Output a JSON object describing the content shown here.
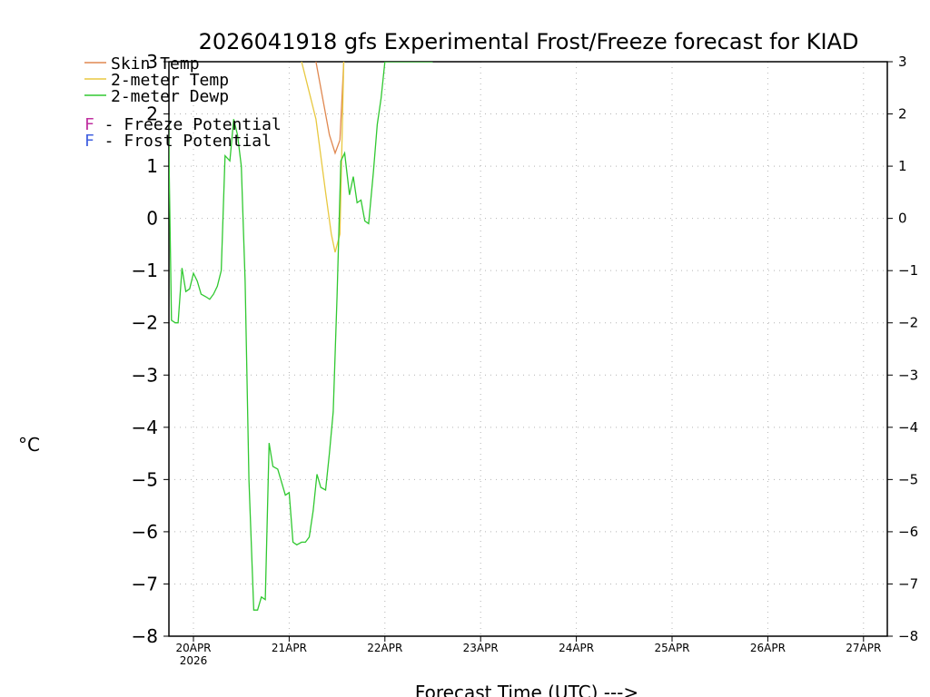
{
  "chart_data": {
    "type": "line",
    "title": "2026041918 gfs Experimental Frost/Freeze forecast for KIAD",
    "ylabel": "°C",
    "xlabel": "Forecast Time (UTC) --->",
    "ylim": [
      -8,
      3
    ],
    "xlim_days": [
      -0.2,
      7.25
    ],
    "y_ticks": [
      -8,
      -7,
      -6,
      -5,
      -4,
      -3,
      -2,
      -1,
      0,
      1,
      2,
      3
    ],
    "y_tick_labels": [
      "−8",
      "−7",
      "−6",
      "−5",
      "−4",
      "−3",
      "−2",
      "−1",
      "0",
      "1",
      "2",
      "3"
    ],
    "x_ticks": [
      {
        "day": 0,
        "label": "20APR",
        "sublabel": "2026"
      },
      {
        "day": 1,
        "label": "21APR"
      },
      {
        "day": 2,
        "label": "22APR"
      },
      {
        "day": 3,
        "label": "23APR"
      },
      {
        "day": 4,
        "label": "24APR"
      },
      {
        "day": 5,
        "label": "25APR"
      },
      {
        "day": 6,
        "label": "26APR"
      },
      {
        "day": 7,
        "label": "27APR"
      }
    ],
    "grid": true,
    "legend": [
      {
        "label": "Skin Temp",
        "color": "#e08850"
      },
      {
        "label": "2-meter Temp",
        "color": "#e8c840"
      },
      {
        "label": "2-meter Dewp",
        "color": "#30c830"
      }
    ],
    "potentials": [
      {
        "letter": "F",
        "text": " - Freeze Potential",
        "color": "#c030a0"
      },
      {
        "letter": "F",
        "text": " - Frost Potential",
        "color": "#4060e0"
      }
    ],
    "series": [
      {
        "name": "Skin Temp",
        "color": "#e08850",
        "x": [
          1.28,
          1.42,
          1.48,
          1.53
        ],
        "y": [
          3.0,
          1.6,
          1.25,
          1.5
        ],
        "x2": [
          1.53,
          1.57
        ],
        "y2": [
          1.5,
          3.0
        ]
      },
      {
        "name": "2-meter Temp",
        "color": "#e8c840",
        "x": [
          1.13,
          1.28,
          1.38,
          1.44,
          1.48,
          1.53,
          1.57
        ],
        "y": [
          3.0,
          1.9,
          0.5,
          -0.3,
          -0.65,
          -0.3,
          3.0
        ]
      },
      {
        "name": "2-meter Dewp",
        "color": "#30c830",
        "x": [
          -0.27,
          -0.23,
          -0.19,
          -0.16,
          -0.12,
          -0.08,
          -0.04,
          0.0,
          0.04,
          0.08,
          0.13,
          0.17,
          0.21,
          0.25,
          0.29,
          0.33,
          0.38,
          0.42,
          0.46,
          0.5,
          0.54,
          0.58,
          0.63,
          0.67,
          0.71,
          0.75,
          0.79,
          0.83,
          0.88,
          0.92,
          0.96,
          1.0,
          1.04,
          1.08,
          1.13,
          1.17,
          1.21,
          1.25,
          1.29,
          1.33,
          1.38,
          1.42,
          1.46,
          1.5,
          1.54,
          1.58,
          1.63,
          1.67,
          1.71,
          1.75,
          1.79,
          1.83,
          1.88,
          1.92,
          1.96,
          2.0,
          2.02,
          2.04,
          2.08,
          2.13,
          2.17,
          2.21,
          2.25,
          2.29,
          2.33,
          2.38,
          2.42,
          2.46,
          2.5
        ],
        "y": [
          3.0,
          -1.95,
          -2.0,
          -2.0,
          -0.95,
          -1.4,
          -1.35,
          -1.05,
          -1.2,
          -1.45,
          -1.5,
          -1.55,
          -1.45,
          -1.3,
          -1.0,
          1.2,
          1.1,
          1.9,
          1.6,
          1.0,
          -1.2,
          -5.0,
          -7.5,
          -7.5,
          -7.25,
          -7.3,
          -4.3,
          -4.75,
          -4.8,
          -5.05,
          -5.3,
          -5.25,
          -6.2,
          -6.25,
          -6.2,
          -6.2,
          -6.1,
          -5.6,
          -4.9,
          -5.15,
          -5.2,
          -4.5,
          -3.7,
          -1.5,
          1.1,
          1.25,
          0.45,
          0.8,
          0.3,
          0.35,
          -0.05,
          -0.1,
          0.9,
          1.8,
          2.3,
          3.0,
          3.0,
          3.0,
          3.0,
          3.0,
          3.0,
          3.0,
          3.0,
          3.0,
          3.0,
          3.0,
          3.0,
          3.0,
          3.0
        ]
      }
    ]
  }
}
